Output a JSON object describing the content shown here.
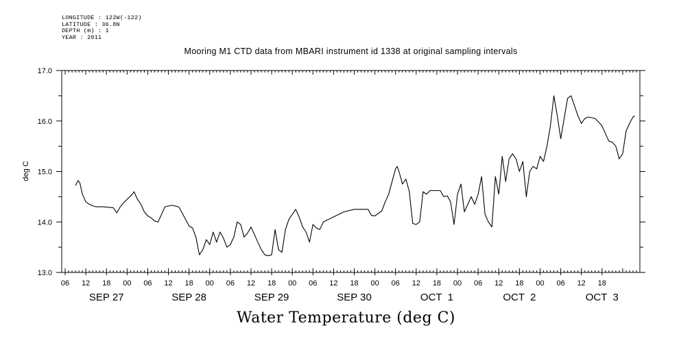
{
  "metadata": {
    "longitude": "LONGITUDE : 122W(-122)",
    "latitude": "LATITUDE : 36.8N",
    "depth": "DEPTH (m) : 1",
    "year": "YEAR : 2011"
  },
  "chart_data": {
    "type": "line",
    "title": "Mooring M1 CTD data from MBARI instrument id 1338 at original sampling intervals",
    "xlabel": "Water Temperature (deg C)",
    "ylabel": "deg C",
    "ylim": [
      13.0,
      17.0
    ],
    "yticks": [
      "13.0",
      "14.0",
      "15.0",
      "16.0",
      "17.0"
    ],
    "xlim": [
      "2011-09-26 23:00",
      "2011-10-03 23:00"
    ],
    "xtick_hours": [
      "06",
      "12",
      "18",
      "00",
      "06",
      "12",
      "18",
      "00",
      "06",
      "12",
      "18",
      "00",
      "06",
      "12",
      "18",
      "00",
      "06",
      "12",
      "18",
      "00",
      "06",
      "12",
      "18",
      "00",
      "06",
      "12",
      "18"
    ],
    "date_labels": [
      "SEP 27",
      "SEP 28",
      "SEP 29",
      "SEP 30",
      "OCT  1",
      "OCT  2",
      "OCT  3"
    ],
    "grid": false,
    "series": [
      {
        "color": "#000000",
        "points": [
          [
            "2011-09-27 03:00",
            14.72
          ],
          [
            "2011-09-27 03:45",
            14.82
          ],
          [
            "2011-09-27 04:15",
            14.78
          ],
          [
            "2011-09-27 05:00",
            14.55
          ],
          [
            "2011-09-27 06:00",
            14.4
          ],
          [
            "2011-09-27 07:00",
            14.35
          ],
          [
            "2011-09-27 08:00",
            14.32
          ],
          [
            "2011-09-27 09:00",
            14.3
          ],
          [
            "2011-09-27 11:00",
            14.3
          ],
          [
            "2011-09-27 13:00",
            14.29
          ],
          [
            "2011-09-27 14:00",
            14.28
          ],
          [
            "2011-09-27 15:00",
            14.18
          ],
          [
            "2011-09-27 16:00",
            14.3
          ],
          [
            "2011-09-27 17:00",
            14.38
          ],
          [
            "2011-09-27 18:00",
            14.45
          ],
          [
            "2011-09-27 19:30",
            14.55
          ],
          [
            "2011-09-27 20:00",
            14.6
          ],
          [
            "2011-09-27 21:00",
            14.45
          ],
          [
            "2011-09-27 22:00",
            14.35
          ],
          [
            "2011-09-27 23:00",
            14.2
          ],
          [
            "2011-09-28 00:00",
            14.12
          ],
          [
            "2011-09-28 01:00",
            14.08
          ],
          [
            "2011-09-28 02:00",
            14.02
          ],
          [
            "2011-09-28 03:00",
            14.0
          ],
          [
            "2011-09-28 04:00",
            14.15
          ],
          [
            "2011-09-28 05:00",
            14.3
          ],
          [
            "2011-09-28 07:00",
            14.33
          ],
          [
            "2011-09-28 09:00",
            14.3
          ],
          [
            "2011-09-28 10:00",
            14.18
          ],
          [
            "2011-09-28 11:00",
            14.05
          ],
          [
            "2011-09-28 12:00",
            13.92
          ],
          [
            "2011-09-28 13:00",
            13.88
          ],
          [
            "2011-09-28 14:00",
            13.7
          ],
          [
            "2011-09-28 15:00",
            13.35
          ],
          [
            "2011-09-28 16:00",
            13.45
          ],
          [
            "2011-09-28 17:00",
            13.65
          ],
          [
            "2011-09-28 18:00",
            13.55
          ],
          [
            "2011-09-28 19:00",
            13.8
          ],
          [
            "2011-09-28 20:00",
            13.6
          ],
          [
            "2011-09-28 21:00",
            13.8
          ],
          [
            "2011-09-28 22:00",
            13.68
          ],
          [
            "2011-09-28 23:00",
            13.5
          ],
          [
            "2011-09-29 00:00",
            13.55
          ],
          [
            "2011-09-29 01:00",
            13.7
          ],
          [
            "2011-09-29 02:00",
            14.0
          ],
          [
            "2011-09-29 03:00",
            13.95
          ],
          [
            "2011-09-29 04:00",
            13.7
          ],
          [
            "2011-09-29 05:00",
            13.78
          ],
          [
            "2011-09-29 06:00",
            13.9
          ],
          [
            "2011-09-29 07:00",
            13.75
          ],
          [
            "2011-09-29 08:00",
            13.6
          ],
          [
            "2011-09-29 09:00",
            13.45
          ],
          [
            "2011-09-29 10:00",
            13.35
          ],
          [
            "2011-09-29 11:00",
            13.33
          ],
          [
            "2011-09-29 12:00",
            13.35
          ],
          [
            "2011-09-29 13:00",
            13.85
          ],
          [
            "2011-09-29 14:00",
            13.45
          ],
          [
            "2011-09-29 15:00",
            13.4
          ],
          [
            "2011-09-29 16:00",
            13.85
          ],
          [
            "2011-09-29 17:00",
            14.05
          ],
          [
            "2011-09-29 18:00",
            14.15
          ],
          [
            "2011-09-29 19:00",
            14.25
          ],
          [
            "2011-09-29 20:00",
            14.1
          ],
          [
            "2011-09-29 21:00",
            13.9
          ],
          [
            "2011-09-29 22:00",
            13.8
          ],
          [
            "2011-09-29 23:00",
            13.6
          ],
          [
            "2011-09-30 00:00",
            13.95
          ],
          [
            "2011-09-30 01:00",
            13.88
          ],
          [
            "2011-09-30 02:00",
            13.85
          ],
          [
            "2011-09-30 03:00",
            14.0
          ],
          [
            "2011-09-30 06:00",
            14.1
          ],
          [
            "2011-09-30 09:00",
            14.2
          ],
          [
            "2011-09-30 12:00",
            14.25
          ],
          [
            "2011-09-30 16:00",
            14.25
          ],
          [
            "2011-09-30 17:00",
            14.13
          ],
          [
            "2011-09-30 18:00",
            14.12
          ],
          [
            "2011-09-30 20:00",
            14.22
          ],
          [
            "2011-09-30 21:00",
            14.4
          ],
          [
            "2011-09-30 22:00",
            14.55
          ],
          [
            "2011-09-30 23:00",
            14.8
          ],
          [
            "2011-10-01 00:00",
            15.05
          ],
          [
            "2011-10-01 00:30",
            15.1
          ],
          [
            "2011-10-01 01:00",
            15.0
          ],
          [
            "2011-10-01 02:00",
            14.75
          ],
          [
            "2011-10-01 03:00",
            14.85
          ],
          [
            "2011-10-01 04:00",
            14.6
          ],
          [
            "2011-10-01 05:00",
            13.97
          ],
          [
            "2011-10-01 06:00",
            13.95
          ],
          [
            "2011-10-01 07:00",
            14.0
          ],
          [
            "2011-10-01 08:00",
            14.6
          ],
          [
            "2011-10-01 09:00",
            14.55
          ],
          [
            "2011-10-01 10:00",
            14.62
          ],
          [
            "2011-10-01 13:00",
            14.62
          ],
          [
            "2011-10-01 14:00",
            14.5
          ],
          [
            "2011-10-01 15:00",
            14.52
          ],
          [
            "2011-10-01 16:00",
            14.4
          ],
          [
            "2011-10-01 17:00",
            13.95
          ],
          [
            "2011-10-01 18:00",
            14.55
          ],
          [
            "2011-10-01 19:00",
            14.75
          ],
          [
            "2011-10-01 20:00",
            14.2
          ],
          [
            "2011-10-01 21:00",
            14.35
          ],
          [
            "2011-10-01 22:00",
            14.5
          ],
          [
            "2011-10-01 23:00",
            14.35
          ],
          [
            "2011-10-02 00:00",
            14.55
          ],
          [
            "2011-10-02 01:00",
            14.9
          ],
          [
            "2011-10-02 02:00",
            14.15
          ],
          [
            "2011-10-02 03:00",
            14.0
          ],
          [
            "2011-10-02 04:00",
            13.9
          ],
          [
            "2011-10-02 05:00",
            14.9
          ],
          [
            "2011-10-02 06:00",
            14.55
          ],
          [
            "2011-10-02 07:00",
            15.3
          ],
          [
            "2011-10-02 08:00",
            14.8
          ],
          [
            "2011-10-02 09:00",
            15.25
          ],
          [
            "2011-10-02 10:00",
            15.35
          ],
          [
            "2011-10-02 11:00",
            15.25
          ],
          [
            "2011-10-02 12:00",
            15.0
          ],
          [
            "2011-10-02 13:00",
            15.2
          ],
          [
            "2011-10-02 14:00",
            14.5
          ],
          [
            "2011-10-02 15:00",
            15.0
          ],
          [
            "2011-10-02 16:00",
            15.1
          ],
          [
            "2011-10-02 17:00",
            15.05
          ],
          [
            "2011-10-02 18:00",
            15.3
          ],
          [
            "2011-10-02 19:00",
            15.2
          ],
          [
            "2011-10-02 20:00",
            15.5
          ],
          [
            "2011-10-02 21:00",
            15.9
          ],
          [
            "2011-10-02 22:00",
            16.5
          ],
          [
            "2011-10-02 23:00",
            16.1
          ],
          [
            "2011-10-03 00:00",
            15.65
          ],
          [
            "2011-10-03 01:00",
            16.05
          ],
          [
            "2011-10-03 02:00",
            16.45
          ],
          [
            "2011-10-03 03:00",
            16.5
          ],
          [
            "2011-10-03 04:00",
            16.3
          ],
          [
            "2011-10-03 05:00",
            16.1
          ],
          [
            "2011-10-03 06:00",
            15.95
          ],
          [
            "2011-10-03 07:00",
            16.05
          ],
          [
            "2011-10-03 08:00",
            16.08
          ],
          [
            "2011-10-03 10:00",
            16.05
          ],
          [
            "2011-10-03 11:00",
            15.98
          ],
          [
            "2011-10-03 12:00",
            15.9
          ],
          [
            "2011-10-03 13:00",
            15.75
          ],
          [
            "2011-10-03 14:00",
            15.6
          ],
          [
            "2011-10-03 15:00",
            15.58
          ],
          [
            "2011-10-03 16:00",
            15.5
          ],
          [
            "2011-10-03 17:00",
            15.25
          ],
          [
            "2011-10-03 18:00",
            15.35
          ],
          [
            "2011-10-03 19:00",
            15.8
          ],
          [
            "2011-10-03 20:00",
            15.95
          ],
          [
            "2011-10-03 21:00",
            16.08
          ],
          [
            "2011-10-03 21:30",
            16.1
          ]
        ]
      }
    ]
  }
}
